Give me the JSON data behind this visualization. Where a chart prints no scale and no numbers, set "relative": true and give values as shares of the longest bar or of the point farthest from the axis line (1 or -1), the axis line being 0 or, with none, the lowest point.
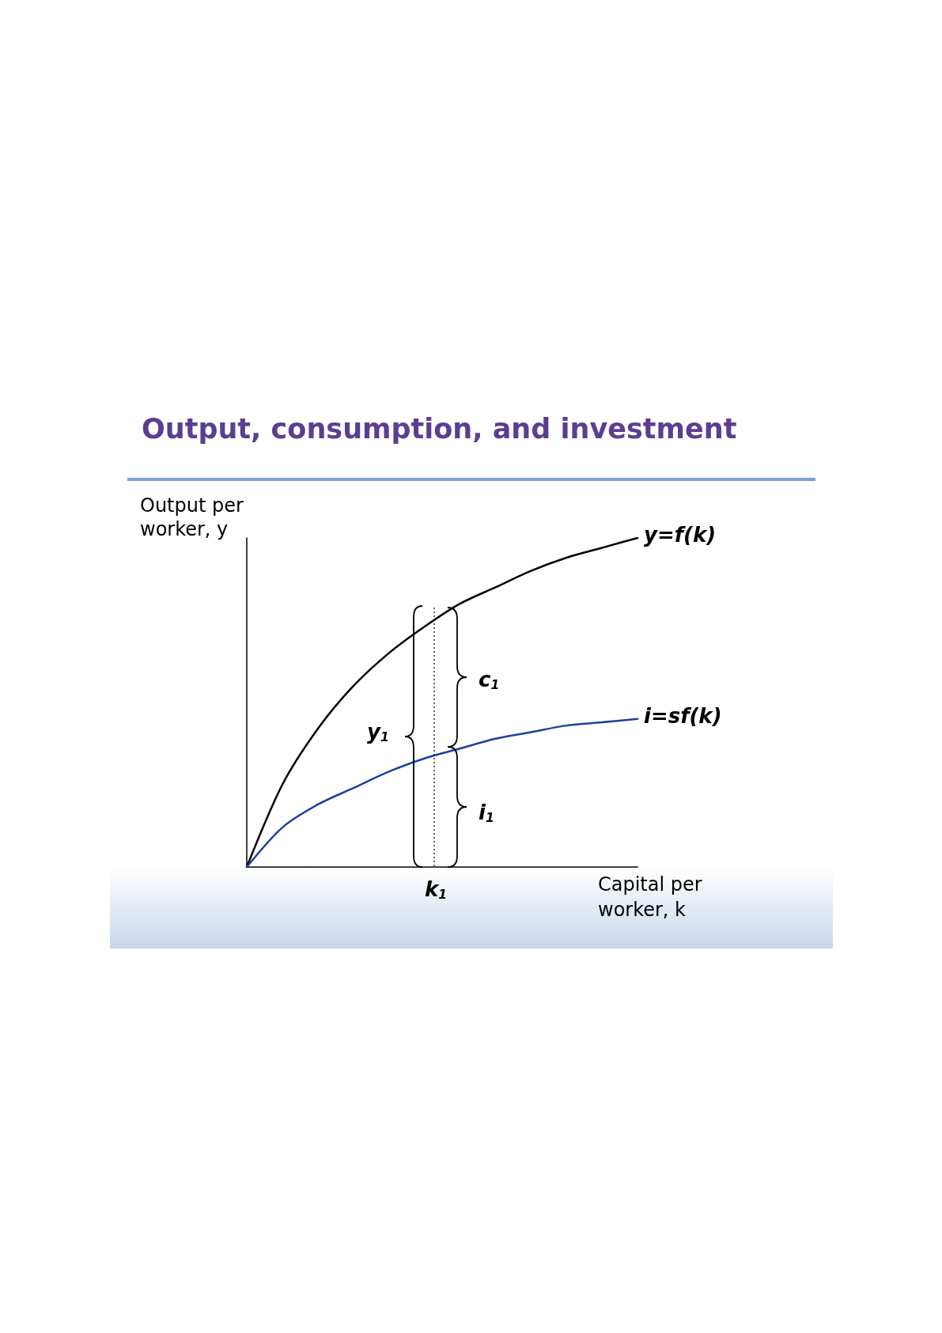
{
  "chart_data": {
    "type": "line",
    "title": "Output, consumption, and investment",
    "xlabel": "Capital per worker, k",
    "ylabel": "Output per worker, y",
    "relative": true,
    "categories": [
      null,
      null,
      null,
      null,
      null,
      null,
      null,
      null,
      null,
      null,
      null,
      null
    ],
    "series": [
      {
        "name": "y=f(k)",
        "color": "#000000",
        "values": [
          0,
          0.25,
          0.42,
          0.55,
          0.65,
          0.73,
          0.8,
          0.85,
          0.9,
          0.94,
          0.97,
          1
        ]
      },
      {
        "name": "i=sf(k)",
        "color": "#1f3fa0",
        "values": [
          0,
          0.12,
          0.19,
          0.24,
          0.29,
          0.33,
          0.36,
          0.39,
          0.41,
          0.43,
          0.44,
          0.45
        ]
      }
    ],
    "annotations": [
      "c$_{1}$",
      "i$_{1}$",
      "y$_{1}$",
      "k$_{1}$"
    ],
    "grid": false,
    "legend": false,
    "marker": "none",
    "line_style": "solid"
  }
}
